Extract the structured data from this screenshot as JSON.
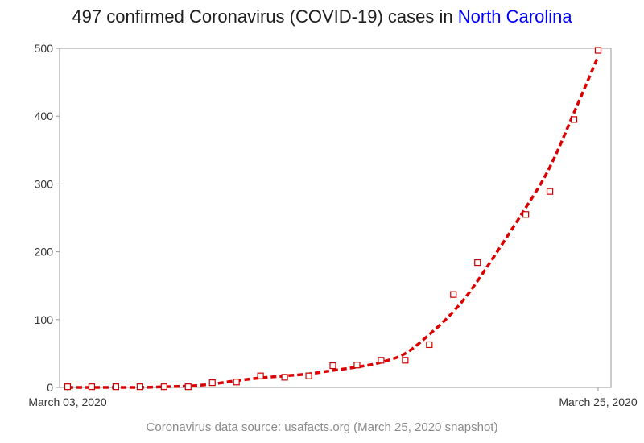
{
  "title": {
    "prefix": "497 confirmed Coronavirus (COVID-19) cases in ",
    "highlight": "North Carolina",
    "highlight_color": "#0000ff"
  },
  "footer": "Coronavirus data source: usafacts.org (March 25, 2020 snapshot)",
  "chart_data": {
    "type": "scatter",
    "x_start": "2020-03-03",
    "x_end": "2020-03-25",
    "xtick_labels": [
      "March 03, 2020",
      "March 25, 2020"
    ],
    "ylim": [
      0,
      500
    ],
    "yticks": [
      0,
      100,
      200,
      300,
      400,
      500
    ],
    "grid": false,
    "marker_color": "#cc0000",
    "trend_color": "#dd0000",
    "x": [
      "2020-03-03",
      "2020-03-04",
      "2020-03-05",
      "2020-03-06",
      "2020-03-07",
      "2020-03-08",
      "2020-03-09",
      "2020-03-10",
      "2020-03-11",
      "2020-03-12",
      "2020-03-13",
      "2020-03-14",
      "2020-03-15",
      "2020-03-16",
      "2020-03-17",
      "2020-03-18",
      "2020-03-19",
      "2020-03-20",
      "2020-03-22",
      "2020-03-23",
      "2020-03-24",
      "2020-03-25"
    ],
    "values": [
      1,
      1,
      1,
      1,
      1,
      1,
      7,
      8,
      17,
      15,
      17,
      32,
      33,
      40,
      40,
      63,
      137,
      184,
      255,
      289,
      395,
      497
    ],
    "trend": [
      0,
      0,
      0,
      0,
      1,
      2,
      5,
      10,
      14,
      17,
      20,
      25,
      30,
      37,
      50,
      78,
      112,
      157,
      265,
      325,
      405,
      488
    ]
  }
}
